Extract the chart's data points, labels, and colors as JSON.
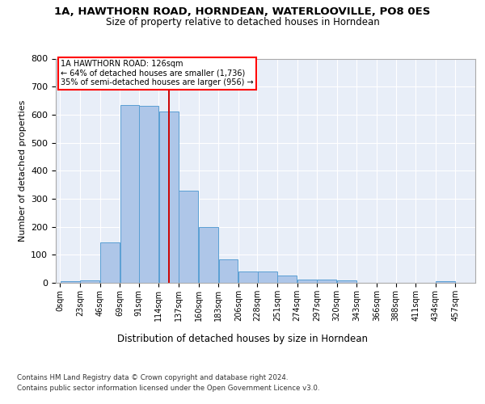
{
  "title1": "1A, HAWTHORN ROAD, HORNDEAN, WATERLOOVILLE, PO8 0ES",
  "title2": "Size of property relative to detached houses in Horndean",
  "xlabel": "Distribution of detached houses by size in Horndean",
  "ylabel": "Number of detached properties",
  "bar_color": "#aec6e8",
  "bar_edge_color": "#5a9fd4",
  "bg_color": "#e8eef8",
  "grid_color": "#ffffff",
  "vline_color": "#cc0000",
  "vline_x": 126,
  "bins": [
    0,
    23,
    46,
    69,
    91,
    114,
    137,
    160,
    183,
    206,
    228,
    251,
    274,
    297,
    320,
    343,
    366,
    388,
    411,
    434,
    457
  ],
  "counts": [
    5,
    10,
    143,
    635,
    630,
    610,
    330,
    200,
    83,
    40,
    40,
    25,
    12,
    12,
    10,
    0,
    0,
    0,
    0,
    5
  ],
  "annotation_text": "1A HAWTHORN ROAD: 126sqm\n← 64% of detached houses are smaller (1,736)\n35% of semi-detached houses are larger (956) →",
  "footnote1": "Contains HM Land Registry data © Crown copyright and database right 2024.",
  "footnote2": "Contains public sector information licensed under the Open Government Licence v3.0.",
  "ylim": [
    0,
    800
  ],
  "yticks": [
    0,
    100,
    200,
    300,
    400,
    500,
    600,
    700,
    800
  ],
  "tick_labels": [
    "0sqm",
    "23sqm",
    "46sqm",
    "69sqm",
    "91sqm",
    "114sqm",
    "137sqm",
    "160sqm",
    "183sqm",
    "206sqm",
    "228sqm",
    "251sqm",
    "274sqm",
    "297sqm",
    "320sqm",
    "343sqm",
    "366sqm",
    "388sqm",
    "411sqm",
    "434sqm",
    "457sqm"
  ]
}
